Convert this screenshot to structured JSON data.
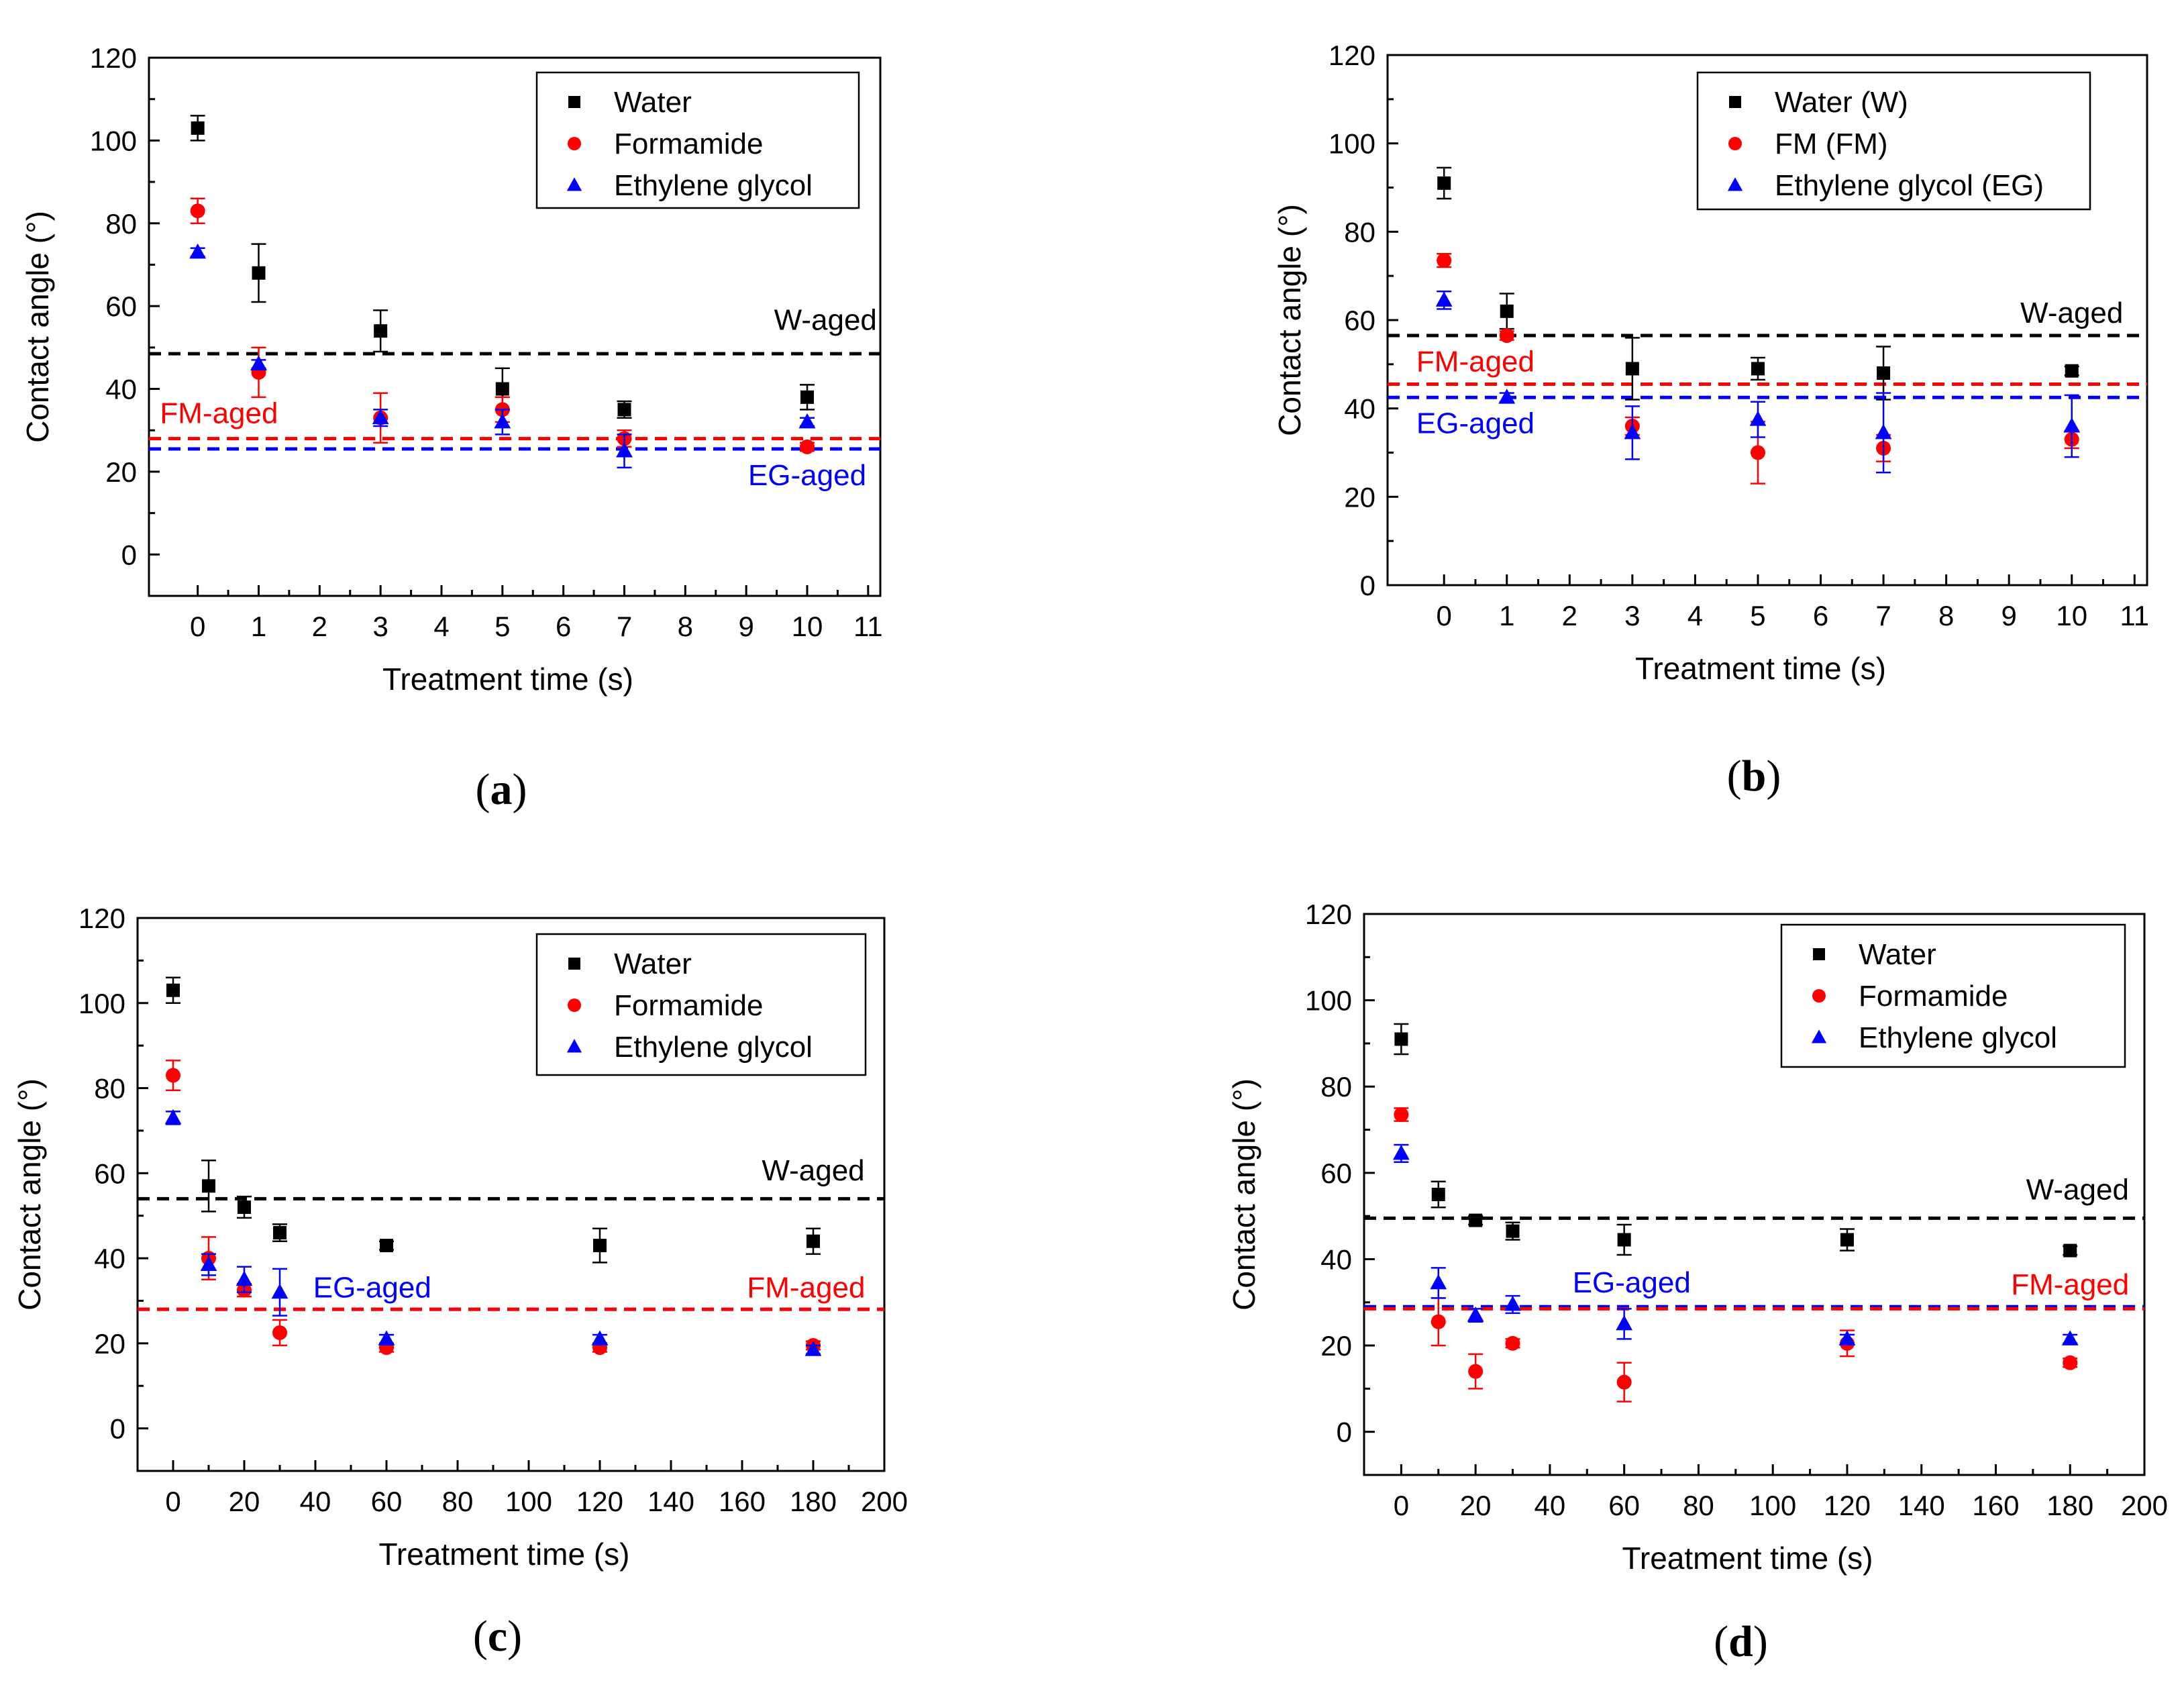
{
  "chart_data": [
    {
      "panel": "a",
      "caption_letter": "a",
      "type": "scatter",
      "title": "",
      "xlabel": "Treatment time (s)",
      "ylabel": "Contact angle (°)",
      "xlim": [
        -0.8,
        11.2
      ],
      "ylim": [
        -10,
        120
      ],
      "xticks": [
        0,
        1,
        2,
        3,
        4,
        5,
        6,
        7,
        8,
        9,
        10,
        11
      ],
      "yticks": [
        0,
        20,
        40,
        60,
        80,
        100,
        120
      ],
      "legend_position": "top-right",
      "series": [
        {
          "name": "Water",
          "marker": "square",
          "color": "#000000",
          "x": [
            0,
            1,
            3,
            5,
            7,
            10
          ],
          "y": [
            103,
            68,
            54,
            40,
            35,
            38
          ],
          "err": [
            3,
            7,
            5,
            5,
            2,
            3
          ]
        },
        {
          "name": "Formamide",
          "marker": "circle",
          "color": "#ff0000",
          "x": [
            0,
            1,
            3,
            5,
            7,
            10
          ],
          "y": [
            83,
            44,
            33,
            35,
            28,
            26
          ],
          "err": [
            3,
            6,
            6,
            3,
            2,
            1
          ]
        },
        {
          "name": "Ethylene glycol",
          "marker": "triangle",
          "color": "#0000ff",
          "x": [
            0,
            1,
            3,
            5,
            7,
            10
          ],
          "y": [
            73,
            46,
            33,
            32,
            25,
            32
          ],
          "err": [
            1,
            1,
            2,
            3,
            4,
            1
          ]
        }
      ],
      "reference_lines": [
        {
          "label": "W-aged",
          "value": 48.5,
          "color": "#000000",
          "label_x": 10.3,
          "label_dy": 8,
          "anchor": "middle"
        },
        {
          "label": "FM-aged",
          "value": 28,
          "color": "#ff0000",
          "label_x": 0.35,
          "label_dy": 6,
          "anchor": "middle"
        },
        {
          "label": "EG-aged",
          "value": 25.5,
          "color": "#0000ff",
          "label_x": 10.0,
          "label_dy": -6.5,
          "anchor": "middle"
        }
      ]
    },
    {
      "panel": "b",
      "caption_letter": "b",
      "type": "scatter",
      "title": "",
      "xlabel": "Treatment time (s)",
      "ylabel": "Contact angle (°)",
      "xlim": [
        -0.9,
        11.2
      ],
      "ylim": [
        0,
        120
      ],
      "xticks": [
        0,
        1,
        2,
        3,
        4,
        5,
        6,
        7,
        8,
        9,
        10,
        11
      ],
      "yticks": [
        0,
        20,
        40,
        60,
        80,
        100,
        120
      ],
      "legend_position": "top-right",
      "series": [
        {
          "name": "Water (W)",
          "marker": "square",
          "color": "#000000",
          "x": [
            0,
            1,
            3,
            5,
            7,
            10
          ],
          "y": [
            91,
            62,
            49,
            49,
            48,
            48.5
          ],
          "err": [
            3.5,
            4,
            7,
            2.5,
            6,
            1
          ]
        },
        {
          "name": "FM (FM)",
          "marker": "circle",
          "color": "#ff0000",
          "x": [
            0,
            1,
            3,
            5,
            7,
            10
          ],
          "y": [
            73.5,
            56.5,
            36,
            30,
            31,
            33
          ],
          "err": [
            1.5,
            1,
            2,
            7,
            3,
            2
          ]
        },
        {
          "name": "Ethylene glycol (EG)",
          "marker": "triangle",
          "color": "#0000ff",
          "x": [
            0,
            1,
            3,
            5,
            7,
            10
          ],
          "y": [
            64.5,
            42.5,
            34.5,
            37.5,
            34.5,
            36
          ],
          "err": [
            2,
            1,
            6,
            4,
            9,
            7
          ]
        }
      ],
      "reference_lines": [
        {
          "label": "W-aged",
          "value": 56.5,
          "color": "#000000",
          "label_x": 10.0,
          "label_dy": 5,
          "anchor": "middle"
        },
        {
          "label": "FM-aged",
          "value": 45.5,
          "color": "#ff0000",
          "label_x": 0.5,
          "label_dy": 5,
          "anchor": "middle"
        },
        {
          "label": "EG-aged",
          "value": 42.5,
          "color": "#0000ff",
          "label_x": 0.5,
          "label_dy": -6,
          "anchor": "middle"
        }
      ]
    },
    {
      "panel": "c",
      "caption_letter": "c",
      "type": "scatter",
      "title": "",
      "xlabel": "Treatment time (s)",
      "ylabel": "Contact angle (°)",
      "xlim": [
        -10,
        200
      ],
      "ylim": [
        -10,
        120
      ],
      "xticks": [
        0,
        20,
        40,
        60,
        80,
        100,
        120,
        140,
        160,
        180,
        200
      ],
      "yticks": [
        0,
        20,
        40,
        60,
        80,
        100,
        120
      ],
      "legend_position": "top-right",
      "series": [
        {
          "name": "Water",
          "marker": "square",
          "color": "#000000",
          "x": [
            0,
            10,
            20,
            30,
            60,
            120,
            180
          ],
          "y": [
            103,
            57,
            52,
            46,
            43,
            43,
            44
          ],
          "err": [
            3,
            6,
            2.5,
            2,
            1,
            4,
            3
          ]
        },
        {
          "name": "Formamide",
          "marker": "circle",
          "color": "#ff0000",
          "x": [
            0,
            10,
            20,
            30,
            60,
            120,
            180
          ],
          "y": [
            83,
            40,
            32.5,
            22.5,
            19,
            19,
            19.5
          ],
          "err": [
            3.5,
            5,
            1.5,
            3,
            1,
            1,
            1
          ]
        },
        {
          "name": "Ethylene glycol",
          "marker": "triangle",
          "color": "#0000ff",
          "x": [
            0,
            10,
            20,
            30,
            60,
            120,
            180
          ],
          "y": [
            73,
            38.5,
            35,
            32,
            21,
            21,
            18.5
          ],
          "err": [
            1.5,
            2.5,
            3,
            5.5,
            1,
            1,
            1
          ]
        }
      ],
      "reference_lines": [
        {
          "label": "W-aged",
          "value": 54,
          "color": "#000000",
          "label_x": 180,
          "label_dy": 6.5,
          "anchor": "middle"
        },
        {
          "label": "EG-aged",
          "value": 28,
          "color": "#0000ff",
          "label_x": 56,
          "label_dy": 5,
          "anchor": "middle"
        },
        {
          "label": "FM-aged",
          "value": 28,
          "color": "#ff0000",
          "label_x": 178,
          "label_dy": 5,
          "anchor": "middle"
        }
      ]
    },
    {
      "panel": "d",
      "caption_letter": "d",
      "type": "scatter",
      "title": "",
      "xlabel": "Treatment time (s)",
      "ylabel": "Contact angle (°)",
      "xlim": [
        -10,
        200
      ],
      "ylim": [
        -10,
        120
      ],
      "xticks": [
        0,
        20,
        40,
        60,
        80,
        100,
        120,
        140,
        160,
        180,
        200
      ],
      "yticks": [
        0,
        20,
        40,
        60,
        80,
        100,
        120
      ],
      "legend_position": "top-right",
      "series": [
        {
          "name": "Water",
          "marker": "square",
          "color": "#000000",
          "x": [
            0,
            10,
            20,
            30,
            60,
            120,
            180
          ],
          "y": [
            91,
            55,
            49,
            46.5,
            44.5,
            44.5,
            42
          ],
          "err": [
            3.5,
            3,
            1,
            2,
            3.5,
            2.5,
            1
          ]
        },
        {
          "name": "Formamide",
          "marker": "circle",
          "color": "#ff0000",
          "x": [
            0,
            10,
            20,
            30,
            60,
            120,
            180
          ],
          "y": [
            73.5,
            25.5,
            14,
            20.5,
            11.5,
            20.5,
            16
          ],
          "err": [
            1.5,
            5.5,
            4,
            1,
            4.5,
            3,
            1
          ]
        },
        {
          "name": "Ethylene glycol",
          "marker": "triangle",
          "color": "#0000ff",
          "x": [
            0,
            10,
            20,
            30,
            60,
            120,
            180
          ],
          "y": [
            64.5,
            34.5,
            27,
            29.5,
            25,
            21.5,
            21.5
          ],
          "err": [
            2,
            3.5,
            1.5,
            2,
            3.5,
            1,
            1
          ]
        }
      ],
      "reference_lines": [
        {
          "label": "W-aged",
          "value": 49.5,
          "color": "#000000",
          "label_x": 182,
          "label_dy": 6.5,
          "anchor": "middle"
        },
        {
          "label": "EG-aged",
          "value": 29,
          "color": "#0000ff",
          "label_x": 62,
          "label_dy": 5.5,
          "anchor": "middle"
        },
        {
          "label": "FM-aged",
          "value": 28.5,
          "color": "#ff0000",
          "label_x": 180,
          "label_dy": 5.5,
          "anchor": "middle"
        }
      ]
    }
  ]
}
